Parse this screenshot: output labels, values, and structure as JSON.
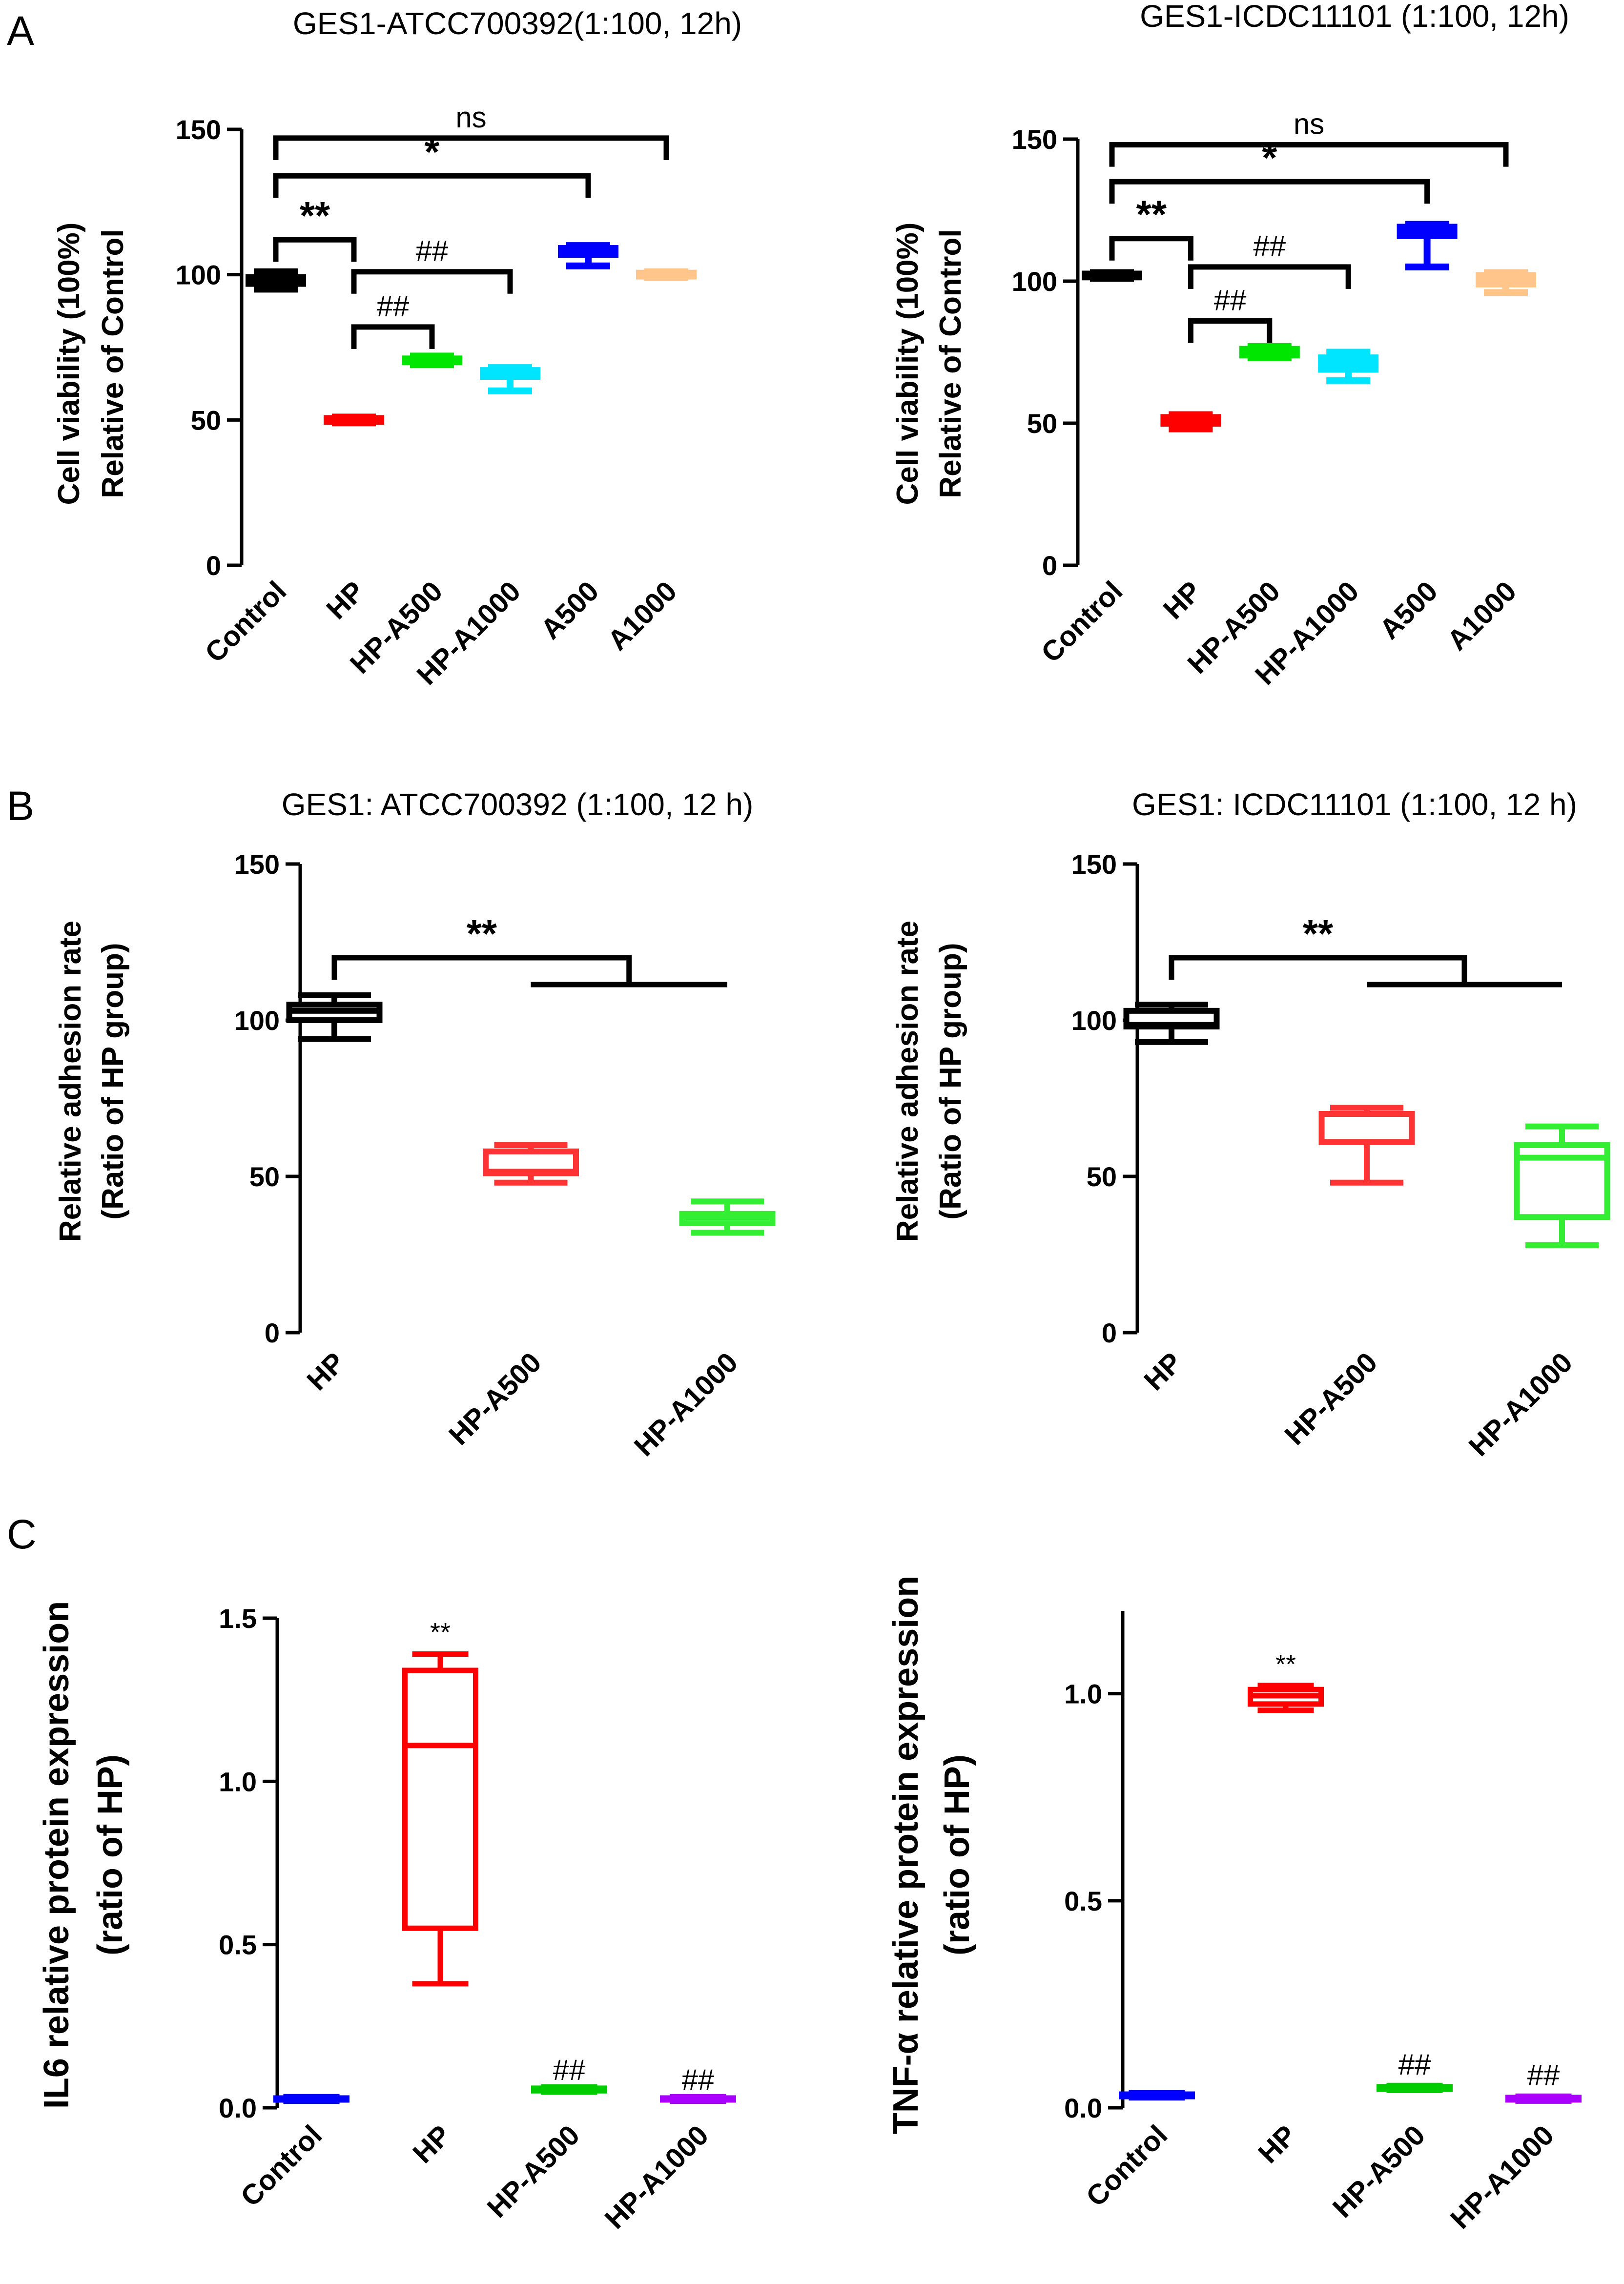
{
  "panel_labels": [
    "A",
    "B",
    "C"
  ],
  "chart_data": [
    {
      "type": "box",
      "id": "a1",
      "panel": "A",
      "title": "GES1-ATCC700392(1:100, 12h)",
      "ylabel": [
        "Cell viability (100%)",
        "Relative of Control"
      ],
      "ylim": [
        0,
        150
      ],
      "yticks": [
        0,
        50,
        100,
        150
      ],
      "ytick_labels": [
        "0",
        "50",
        "100",
        "150"
      ],
      "categories": [
        "Control",
        "HP",
        "HP-A500",
        "HP-A1000",
        "A500",
        "A1000"
      ],
      "colors": [
        "#000000",
        "#ff0000",
        "#00e600",
        "#00e5ff",
        "#0000ff",
        "#ffc58a"
      ],
      "boxes": [
        {
          "min": 95,
          "q1": 97,
          "median": 98,
          "q3": 99,
          "max": 101
        },
        {
          "min": 49,
          "q1": 49.5,
          "median": 50,
          "q3": 50.5,
          "max": 51
        },
        {
          "min": 69,
          "q1": 70,
          "median": 70.5,
          "q3": 71,
          "max": 72
        },
        {
          "min": 60,
          "q1": 65,
          "median": 66,
          "q3": 67,
          "max": 68
        },
        {
          "min": 103,
          "q1": 107,
          "median": 108,
          "q3": 109,
          "max": 110
        },
        {
          "min": 99,
          "q1": 99.5,
          "median": 100,
          "q3": 100.5,
          "max": 101
        }
      ],
      "annotations": [
        {
          "type": "bracket",
          "from": 0,
          "to": 5,
          "y": 147,
          "label": "ns",
          "style": "normal"
        },
        {
          "type": "bracket",
          "from": 0,
          "to": 4,
          "y": 134,
          "label": "*",
          "style": "big"
        },
        {
          "type": "bracket",
          "from": 0,
          "to": 1,
          "y": 112,
          "label": "**",
          "style": "big"
        },
        {
          "type": "bracket",
          "from": 1,
          "to": 3,
          "y": 101,
          "label": "##",
          "style": "normal"
        },
        {
          "type": "bracket",
          "from": 1,
          "to": 2,
          "y": 82,
          "label": "##",
          "style": "normal"
        }
      ]
    },
    {
      "type": "box",
      "id": "a2",
      "panel": "A",
      "title": "GES1-ICDC11101 (1:100, 12h)",
      "ylabel": [
        "Cell viability (100%)",
        "Relative of Control"
      ],
      "ylim": [
        0,
        150
      ],
      "yticks": [
        0,
        50,
        100,
        150
      ],
      "ytick_labels": [
        "0",
        "50",
        "100",
        "150"
      ],
      "categories": [
        "Control",
        "HP",
        "HP-A500",
        "HP-A1000",
        "A500",
        "A1000"
      ],
      "colors": [
        "#000000",
        "#ff0000",
        "#00e600",
        "#00e5ff",
        "#0000ff",
        "#ffc58a"
      ],
      "boxes": [
        {
          "min": 101,
          "q1": 101.5,
          "median": 102,
          "q3": 102.5,
          "max": 103
        },
        {
          "min": 48,
          "q1": 50,
          "median": 51,
          "q3": 52,
          "max": 53
        },
        {
          "min": 73,
          "q1": 74,
          "median": 75,
          "q3": 76,
          "max": 77
        },
        {
          "min": 65,
          "q1": 69,
          "median": 71,
          "q3": 73,
          "max": 75
        },
        {
          "min": 105,
          "q1": 116,
          "median": 118,
          "q3": 119,
          "max": 120
        },
        {
          "min": 96,
          "q1": 99,
          "median": 101,
          "q3": 102,
          "max": 103
        }
      ],
      "annotations": [
        {
          "type": "bracket",
          "from": 0,
          "to": 5,
          "y": 148,
          "label": "ns",
          "style": "normal"
        },
        {
          "type": "bracket",
          "from": 0,
          "to": 4,
          "y": 135,
          "label": "*",
          "style": "big"
        },
        {
          "type": "bracket",
          "from": 0,
          "to": 1,
          "y": 115,
          "label": "**",
          "style": "big"
        },
        {
          "type": "bracket",
          "from": 1,
          "to": 3,
          "y": 105,
          "label": "##",
          "style": "normal"
        },
        {
          "type": "bracket",
          "from": 1,
          "to": 2,
          "y": 86,
          "label": "##",
          "style": "normal"
        }
      ]
    },
    {
      "type": "box",
      "id": "b1",
      "panel": "B",
      "title": "GES1: ATCC700392 (1:100, 12 h)",
      "ylabel": [
        "Relative adhesion rate",
        "(Ratio of HP group)"
      ],
      "ylim": [
        0,
        150
      ],
      "yticks": [
        0,
        50,
        100,
        150
      ],
      "ytick_labels": [
        "0",
        "50",
        "100",
        "150"
      ],
      "categories": [
        "HP",
        "HP-A500",
        "HP-A1000"
      ],
      "colors": [
        "#000000",
        "#ff3333",
        "#33ee33"
      ],
      "boxes": [
        {
          "min": 94,
          "q1": 100,
          "median": 103,
          "q3": 105,
          "max": 108
        },
        {
          "min": 48,
          "q1": 51,
          "median": 51.5,
          "q3": 58,
          "max": 60
        },
        {
          "min": 32,
          "q1": 35,
          "median": 37,
          "q3": 38,
          "max": 42
        }
      ],
      "annotations": [
        {
          "type": "bracket-group",
          "from": 0,
          "group_from": 1,
          "group_to": 2,
          "y": 120,
          "label": "**",
          "style": "big"
        }
      ]
    },
    {
      "type": "box",
      "id": "b2",
      "panel": "B",
      "title": "GES1: ICDC11101 (1:100, 12 h)",
      "ylabel": [
        "Relative adhesion rate",
        "(Ratio of HP group)"
      ],
      "ylim": [
        0,
        150
      ],
      "yticks": [
        0,
        50,
        100,
        150
      ],
      "ytick_labels": [
        "0",
        "50",
        "100",
        "150"
      ],
      "categories": [
        "HP",
        "HP-A500",
        "HP-A1000"
      ],
      "colors": [
        "#000000",
        "#ff3333",
        "#33ee33"
      ],
      "boxes": [
        {
          "min": 93,
          "q1": 98,
          "median": 98.5,
          "q3": 103,
          "max": 105
        },
        {
          "min": 48,
          "q1": 61,
          "median": 61,
          "q3": 70,
          "max": 72
        },
        {
          "min": 28,
          "q1": 37,
          "median": 56,
          "q3": 60,
          "max": 66
        }
      ],
      "annotations": [
        {
          "type": "bracket-group",
          "from": 0,
          "group_from": 1,
          "group_to": 2,
          "y": 120,
          "label": "**",
          "style": "big"
        }
      ]
    },
    {
      "type": "box",
      "id": "c1",
      "panel": "C",
      "title": "",
      "ylabel": [
        "IL6 relative protein expression",
        "(ratio of HP)"
      ],
      "ylabel_style": "big",
      "ylim": [
        0,
        1.5
      ],
      "yticks": [
        0,
        0.5,
        1.0,
        1.5
      ],
      "ytick_labels": [
        "0.0",
        "0.5",
        "1.0",
        "1.5"
      ],
      "categories": [
        "Control",
        "HP",
        "HP-A500",
        "HP-A1000"
      ],
      "colors": [
        "#0000ff",
        "#ff0000",
        "#00cc00",
        "#aa00ff"
      ],
      "boxes": [
        {
          "min": 0.02,
          "q1": 0.024,
          "median": 0.027,
          "q3": 0.03,
          "max": 0.034
        },
        {
          "min": 0.38,
          "q1": 0.55,
          "median": 1.11,
          "q3": 1.34,
          "max": 1.39
        },
        {
          "min": 0.048,
          "q1": 0.052,
          "median": 0.056,
          "q3": 0.06,
          "max": 0.064
        },
        {
          "min": 0.02,
          "q1": 0.024,
          "median": 0.027,
          "q3": 0.03,
          "max": 0.034
        }
      ],
      "annotations": [
        {
          "type": "text",
          "at": 1,
          "y": 1.43,
          "label": "**",
          "style": "small"
        },
        {
          "type": "text",
          "at": 2,
          "y": 0.085,
          "label": "##",
          "style": "normal"
        },
        {
          "type": "text",
          "at": 3,
          "y": 0.055,
          "label": "##",
          "style": "normal"
        }
      ]
    },
    {
      "type": "box",
      "id": "c2",
      "panel": "C",
      "title": "",
      "ylabel": [
        "TNF-α relative protein expression",
        "(ratio of HP)"
      ],
      "ylabel_style": "big",
      "ylim": [
        0,
        1.2
      ],
      "yticks": [
        0,
        0.5,
        1.0
      ],
      "ytick_labels": [
        "0.0",
        "0.5",
        "1.0"
      ],
      "categories": [
        "Control",
        "HP",
        "HP-A500",
        "HP-A1000"
      ],
      "colors": [
        "#0000ff",
        "#ff0000",
        "#00cc00",
        "#aa00ff"
      ],
      "boxes": [
        {
          "min": 0.024,
          "q1": 0.027,
          "median": 0.03,
          "q3": 0.033,
          "max": 0.036
        },
        {
          "min": 0.96,
          "q1": 0.975,
          "median": 0.995,
          "q3": 1.01,
          "max": 1.02
        },
        {
          "min": 0.042,
          "q1": 0.045,
          "median": 0.048,
          "q3": 0.051,
          "max": 0.054
        },
        {
          "min": 0.016,
          "q1": 0.019,
          "median": 0.022,
          "q3": 0.025,
          "max": 0.028
        }
      ],
      "annotations": [
        {
          "type": "text",
          "at": 1,
          "y": 1.05,
          "label": "**",
          "style": "small"
        },
        {
          "type": "text",
          "at": 2,
          "y": 0.08,
          "label": "##",
          "style": "normal"
        },
        {
          "type": "text",
          "at": 3,
          "y": 0.055,
          "label": "##",
          "style": "normal"
        }
      ]
    }
  ]
}
